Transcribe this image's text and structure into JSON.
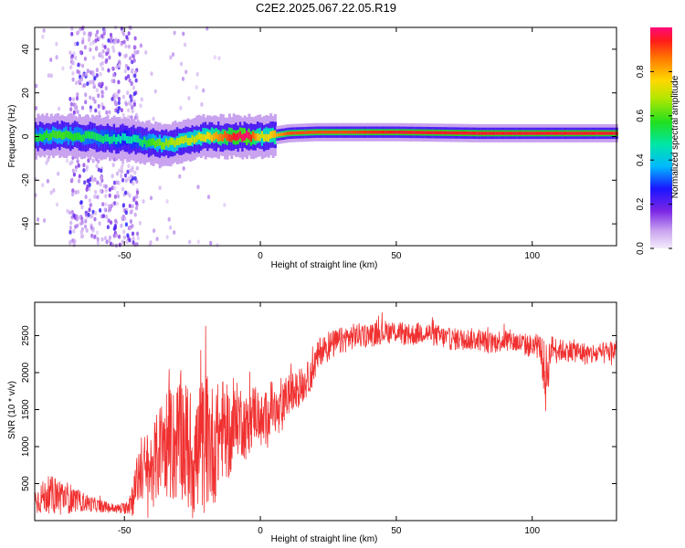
{
  "figure": {
    "title": "C2E2.2025.067.22.05.R19"
  },
  "colorbar": {
    "label": "Normalized spectral amplitude",
    "ticks": [
      "0.0",
      "0.2",
      "0.4",
      "0.6",
      "0.8"
    ]
  },
  "chart_data": [
    {
      "type": "heatmap",
      "title": "",
      "xlabel": "Height of straight line (km)",
      "ylabel": "Frequency (Hz)",
      "xlim": [
        -83,
        131
      ],
      "ylim": [
        -50,
        50
      ],
      "xticks": [
        -50,
        0,
        50,
        100
      ],
      "xtick_labels": [
        "-50",
        "0",
        "50",
        "100"
      ],
      "yticks": [
        -40,
        -20,
        0,
        20,
        40
      ],
      "ytick_labels": [
        "-40",
        "-20",
        "0",
        "20",
        "40"
      ],
      "value_range": [
        0,
        1
      ],
      "colorbar_label": "Normalized spectral amplitude",
      "band": {
        "x": [
          -83,
          -75,
          -65,
          -55,
          -50,
          -45,
          -40,
          -35,
          -30,
          -25,
          -20,
          -15,
          -10,
          -5,
          0,
          5,
          10,
          20,
          30,
          50,
          80,
          100,
          131
        ],
        "center_hz": [
          0,
          0.5,
          0,
          -1,
          -1,
          -2,
          -3,
          -3.5,
          -2.5,
          -1,
          0,
          0,
          0,
          0,
          0,
          0.5,
          1.5,
          2,
          2,
          2,
          1.5,
          1.5,
          1.5
        ],
        "peak_amplitude": [
          0.55,
          0.6,
          0.55,
          0.5,
          0.45,
          0.5,
          0.6,
          0.65,
          0.7,
          0.7,
          0.75,
          0.85,
          0.95,
          1.0,
          0.7,
          0.8,
          0.9,
          0.9,
          0.9,
          0.95,
          0.95,
          0.95,
          0.95
        ]
      },
      "noise_region_km": [
        -70,
        -45
      ]
    },
    {
      "type": "line",
      "title": "",
      "xlabel": "Height of straight line (km)",
      "ylabel": "SNR (10 * v/v)",
      "xlim": [
        -83,
        131
      ],
      "ylim": [
        0,
        2950
      ],
      "xticks": [
        -50,
        0,
        50,
        100
      ],
      "xtick_labels": [
        "-50",
        "0",
        "50",
        "100"
      ],
      "yticks": [
        500,
        1000,
        1500,
        2000,
        2500
      ],
      "ytick_labels": [
        "500",
        "1000",
        "1500",
        "2000",
        "2500"
      ],
      "color": "#f03030",
      "series": [
        {
          "x": [
            -83,
            -78,
            -73,
            -68,
            -63,
            -58,
            -53,
            -50,
            -47,
            -44,
            -41,
            -38,
            -35,
            -32,
            -29,
            -26,
            -23,
            -20,
            -17,
            -14,
            -11,
            -8,
            -5,
            -2,
            1,
            4,
            7,
            10,
            13,
            16,
            19,
            22,
            25,
            28,
            31,
            35,
            40,
            45,
            50,
            55,
            60,
            65,
            70,
            75,
            80,
            85,
            90,
            95,
            100,
            103,
            105,
            107,
            110,
            115,
            120,
            125,
            131
          ],
          "y": [
            260,
            350,
            330,
            280,
            230,
            190,
            160,
            170,
            300,
            700,
            650,
            850,
            1100,
            1000,
            1150,
            900,
            850,
            1100,
            1000,
            1250,
            1150,
            1400,
            1250,
            1500,
            1300,
            1550,
            1400,
            1700,
            1750,
            1850,
            2000,
            2300,
            2350,
            2400,
            2450,
            2500,
            2500,
            2550,
            2550,
            2500,
            2550,
            2500,
            2450,
            2450,
            2450,
            2400,
            2450,
            2400,
            2350,
            2350,
            1900,
            2350,
            2300,
            2300,
            2250,
            2250,
            2300
          ],
          "spread": [
            180,
            250,
            260,
            160,
            110,
            80,
            60,
            80,
            250,
            450,
            550,
            600,
            750,
            800,
            850,
            900,
            950,
            950,
            800,
            700,
            600,
            500,
            450,
            400,
            380,
            350,
            330,
            300,
            260,
            240,
            220,
            200,
            200,
            190,
            180,
            170,
            160,
            160,
            150,
            150,
            150,
            150,
            150,
            150,
            150,
            150,
            150,
            150,
            160,
            160,
            500,
            160,
            150,
            150,
            150,
            150,
            150
          ]
        }
      ]
    }
  ]
}
